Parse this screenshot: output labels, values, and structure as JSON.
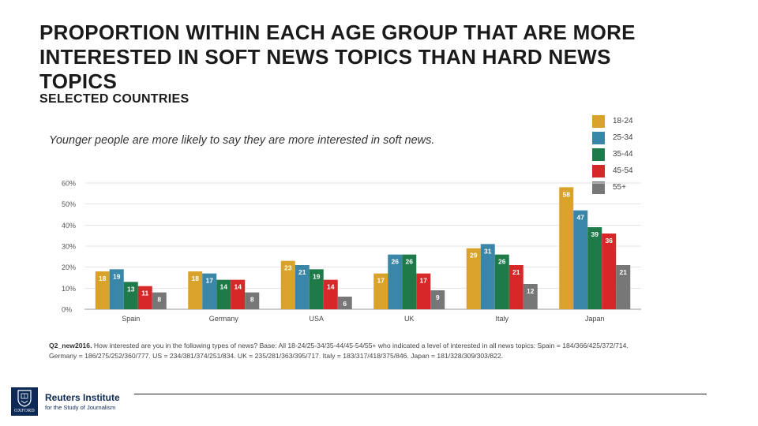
{
  "header": {
    "title": "PROPORTION WITHIN EACH AGE GROUP THAT ARE MORE INTERESTED IN SOFT NEWS TOPICS THAN HARD NEWS TOPICS",
    "subtitle": "SELECTED COUNTRIES",
    "note": "Younger people are more likely to say they are more interested in soft news."
  },
  "chart_data": {
    "type": "bar",
    "categories": [
      "Spain",
      "Germany",
      "USA",
      "UK",
      "Italy",
      "Japan"
    ],
    "series": [
      {
        "name": "18-24",
        "color": "#d9a22a",
        "values": [
          18,
          18,
          23,
          17,
          29,
          58
        ]
      },
      {
        "name": "25-34",
        "color": "#3a86a8",
        "values": [
          19,
          17,
          21,
          26,
          31,
          47
        ]
      },
      {
        "name": "35-44",
        "color": "#1f7a4a",
        "values": [
          13,
          14,
          19,
          26,
          26,
          39
        ]
      },
      {
        "name": "45-54",
        "color": "#d62828",
        "values": [
          11,
          14,
          14,
          17,
          21,
          36
        ]
      },
      {
        "name": "55+",
        "color": "#777777",
        "values": [
          8,
          8,
          6,
          9,
          12,
          21
        ]
      }
    ],
    "yticks": [
      "0%",
      "10%",
      "20%",
      "30%",
      "40%",
      "50%",
      "60%"
    ],
    "ylim": [
      0,
      60
    ],
    "grid": true,
    "legend_position": "top-right"
  },
  "footnote": {
    "label": "Q2_new2016.",
    "text": "How interested are you in the following types of news? Base: All 18-24/25-34/35-44/45-54/55+ who indicated a level of interested in all news topics: Spain = 184/366/425/372/714. Germany = 186/275/252/360/777. US = 234/381/374/251/834. UK = 235/281/363/395/717. Italy = 183/317/418/375/846. Japan = 181/328/309/303/822."
  },
  "logo": {
    "name": "Reuters Institute",
    "sub": "for the Study of Journalism",
    "crest_word": "OXFORD"
  }
}
